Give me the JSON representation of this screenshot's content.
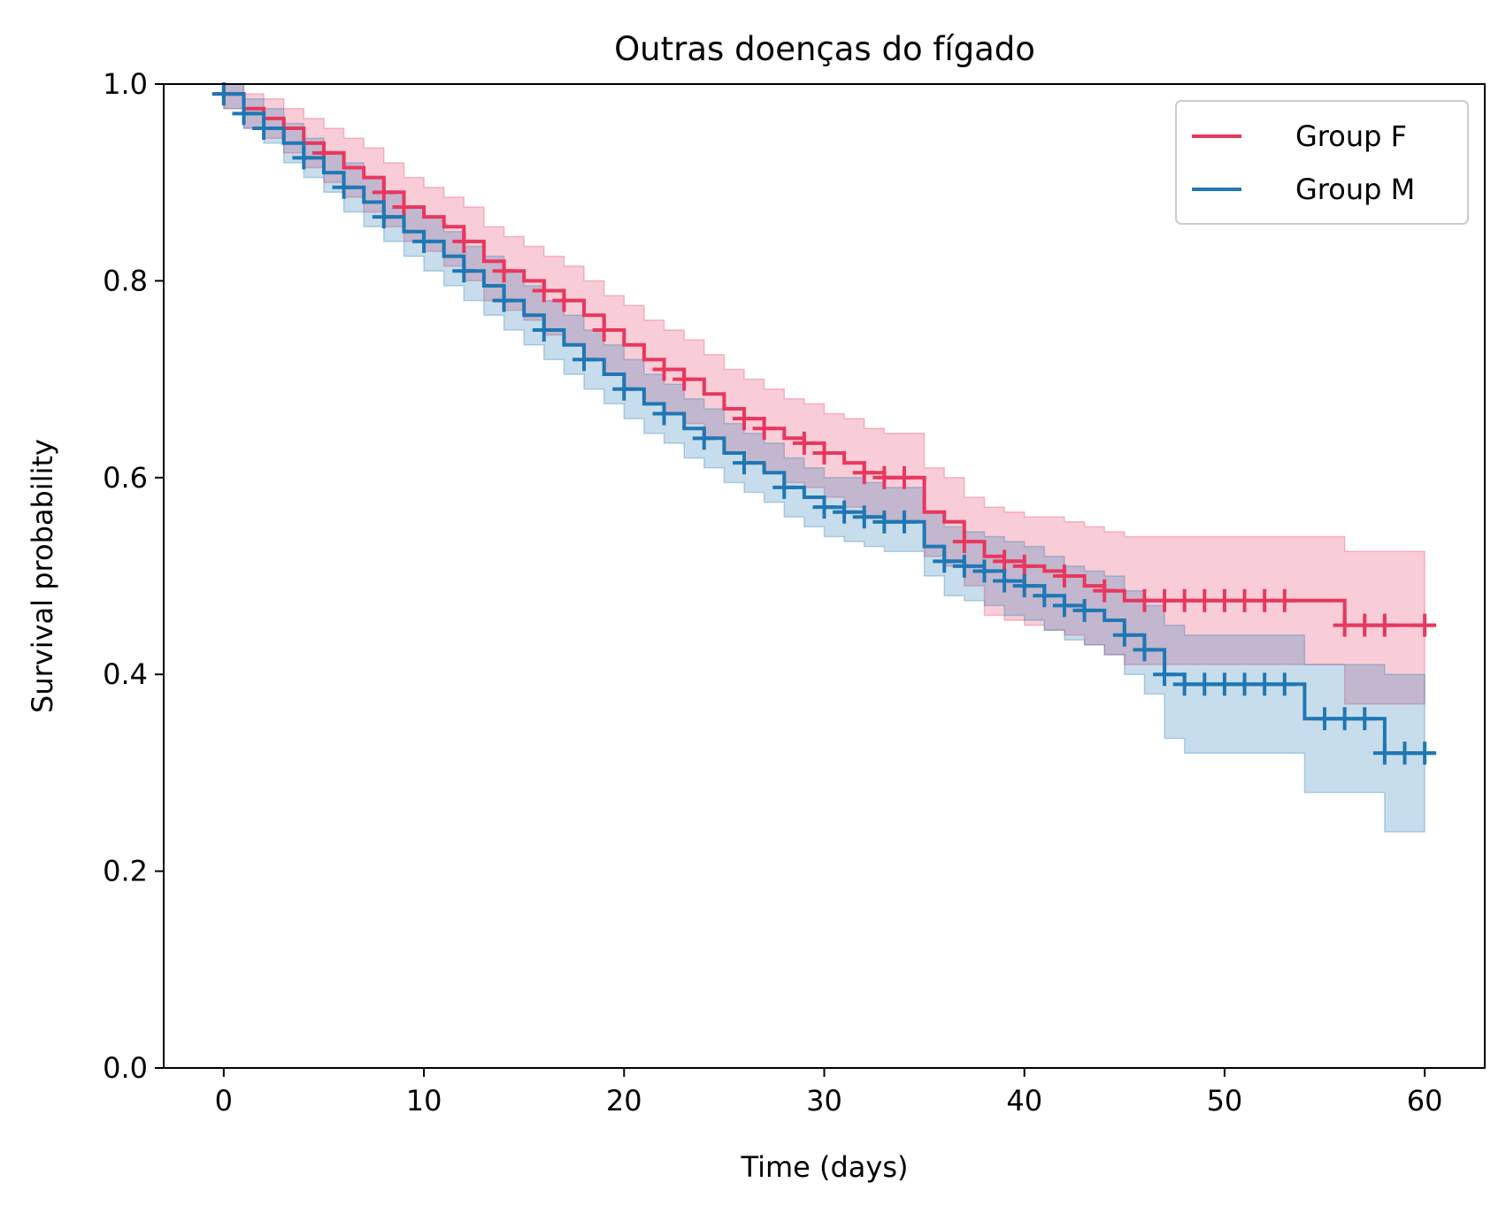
{
  "chart_data": {
    "type": "line",
    "subtype": "kaplan-meier",
    "title": "Outras doenças do fígado",
    "xlabel": "Time (days)",
    "ylabel": "Survival probability",
    "xlim": [
      -3,
      63
    ],
    "ylim": [
      0,
      1
    ],
    "xticks": [
      0,
      10,
      20,
      30,
      40,
      50,
      60
    ],
    "yticks": [
      0.0,
      0.2,
      0.4,
      0.6,
      0.8,
      1.0
    ],
    "xtick_labels": [
      "0",
      "10",
      "20",
      "30",
      "40",
      "50",
      "60"
    ],
    "ytick_labels": [
      "0.0",
      "0.2",
      "0.4",
      "0.6",
      "0.8",
      "1.0"
    ],
    "grid": false,
    "legend_position": "top-right",
    "legend": [
      "Group F",
      "Group M"
    ],
    "series": [
      {
        "name": "Group F",
        "color": "#e8375e",
        "steps": [
          [
            0,
            0.99
          ],
          [
            1,
            0.975
          ],
          [
            2,
            0.965
          ],
          [
            3,
            0.955
          ],
          [
            4,
            0.94
          ],
          [
            5,
            0.93
          ],
          [
            6,
            0.915
          ],
          [
            7,
            0.905
          ],
          [
            8,
            0.89
          ],
          [
            9,
            0.875
          ],
          [
            10,
            0.865
          ],
          [
            11,
            0.855
          ],
          [
            12,
            0.84
          ],
          [
            13,
            0.82
          ],
          [
            14,
            0.81
          ],
          [
            15,
            0.8
          ],
          [
            16,
            0.79
          ],
          [
            17,
            0.78
          ],
          [
            18,
            0.765
          ],
          [
            19,
            0.75
          ],
          [
            20,
            0.735
          ],
          [
            21,
            0.72
          ],
          [
            22,
            0.71
          ],
          [
            23,
            0.7
          ],
          [
            24,
            0.685
          ],
          [
            25,
            0.67
          ],
          [
            26,
            0.66
          ],
          [
            27,
            0.65
          ],
          [
            28,
            0.64
          ],
          [
            29,
            0.635
          ],
          [
            30,
            0.625
          ],
          [
            31,
            0.615
          ],
          [
            32,
            0.605
          ],
          [
            33,
            0.6
          ],
          [
            35,
            0.565
          ],
          [
            36,
            0.555
          ],
          [
            37,
            0.535
          ],
          [
            38,
            0.52
          ],
          [
            39,
            0.515
          ],
          [
            40,
            0.51
          ],
          [
            41,
            0.505
          ],
          [
            42,
            0.5
          ],
          [
            43,
            0.49
          ],
          [
            44,
            0.485
          ],
          [
            45,
            0.475
          ],
          [
            56,
            0.45
          ]
        ],
        "end": 60.5,
        "ci_upper": [
          [
            0,
            1.0
          ],
          [
            1,
            0.99
          ],
          [
            2,
            0.985
          ],
          [
            3,
            0.975
          ],
          [
            4,
            0.965
          ],
          [
            5,
            0.955
          ],
          [
            6,
            0.945
          ],
          [
            7,
            0.935
          ],
          [
            8,
            0.92
          ],
          [
            9,
            0.905
          ],
          [
            10,
            0.895
          ],
          [
            11,
            0.885
          ],
          [
            12,
            0.875
          ],
          [
            13,
            0.855
          ],
          [
            14,
            0.845
          ],
          [
            15,
            0.835
          ],
          [
            16,
            0.825
          ],
          [
            17,
            0.815
          ],
          [
            18,
            0.8
          ],
          [
            19,
            0.785
          ],
          [
            20,
            0.775
          ],
          [
            21,
            0.76
          ],
          [
            22,
            0.75
          ],
          [
            23,
            0.74
          ],
          [
            24,
            0.725
          ],
          [
            25,
            0.71
          ],
          [
            26,
            0.7
          ],
          [
            27,
            0.69
          ],
          [
            28,
            0.68
          ],
          [
            29,
            0.675
          ],
          [
            30,
            0.665
          ],
          [
            31,
            0.66
          ],
          [
            32,
            0.65
          ],
          [
            33,
            0.645
          ],
          [
            35,
            0.61
          ],
          [
            36,
            0.6
          ],
          [
            37,
            0.58
          ],
          [
            38,
            0.57
          ],
          [
            39,
            0.565
          ],
          [
            40,
            0.56
          ],
          [
            41,
            0.56
          ],
          [
            42,
            0.555
          ],
          [
            43,
            0.55
          ],
          [
            44,
            0.545
          ],
          [
            45,
            0.54
          ],
          [
            56,
            0.525
          ]
        ],
        "ci_lower": [
          [
            0,
            0.975
          ],
          [
            1,
            0.955
          ],
          [
            2,
            0.945
          ],
          [
            3,
            0.93
          ],
          [
            4,
            0.915
          ],
          [
            5,
            0.9
          ],
          [
            6,
            0.885
          ],
          [
            7,
            0.87
          ],
          [
            8,
            0.855
          ],
          [
            9,
            0.84
          ],
          [
            10,
            0.83
          ],
          [
            11,
            0.815
          ],
          [
            12,
            0.8
          ],
          [
            13,
            0.78
          ],
          [
            14,
            0.77
          ],
          [
            15,
            0.76
          ],
          [
            16,
            0.745
          ],
          [
            17,
            0.735
          ],
          [
            18,
            0.72
          ],
          [
            19,
            0.705
          ],
          [
            20,
            0.69
          ],
          [
            21,
            0.675
          ],
          [
            22,
            0.665
          ],
          [
            23,
            0.655
          ],
          [
            24,
            0.64
          ],
          [
            25,
            0.625
          ],
          [
            26,
            0.615
          ],
          [
            27,
            0.605
          ],
          [
            28,
            0.595
          ],
          [
            29,
            0.59
          ],
          [
            30,
            0.58
          ],
          [
            31,
            0.57
          ],
          [
            32,
            0.56
          ],
          [
            33,
            0.555
          ],
          [
            35,
            0.52
          ],
          [
            36,
            0.51
          ],
          [
            37,
            0.49
          ],
          [
            38,
            0.46
          ],
          [
            39,
            0.455
          ],
          [
            40,
            0.45
          ],
          [
            41,
            0.445
          ],
          [
            42,
            0.44
          ],
          [
            43,
            0.43
          ],
          [
            44,
            0.42
          ],
          [
            45,
            0.41
          ],
          [
            56,
            0.37
          ]
        ],
        "censor_times": [
          0,
          3,
          5,
          8,
          9,
          12,
          14,
          16,
          17,
          19,
          22,
          23,
          26,
          27,
          29,
          30,
          32,
          33,
          34,
          37,
          39,
          40,
          42,
          44,
          46,
          47,
          48,
          49,
          50,
          51,
          52,
          53,
          56,
          57,
          58,
          60
        ]
      },
      {
        "name": "Group M",
        "color": "#1f77b4",
        "steps": [
          [
            0,
            0.99
          ],
          [
            1,
            0.97
          ],
          [
            2,
            0.955
          ],
          [
            3,
            0.94
          ],
          [
            4,
            0.925
          ],
          [
            5,
            0.91
          ],
          [
            6,
            0.895
          ],
          [
            7,
            0.88
          ],
          [
            8,
            0.865
          ],
          [
            9,
            0.85
          ],
          [
            10,
            0.84
          ],
          [
            11,
            0.825
          ],
          [
            12,
            0.81
          ],
          [
            13,
            0.795
          ],
          [
            14,
            0.78
          ],
          [
            15,
            0.765
          ],
          [
            16,
            0.75
          ],
          [
            17,
            0.735
          ],
          [
            18,
            0.72
          ],
          [
            19,
            0.705
          ],
          [
            20,
            0.69
          ],
          [
            21,
            0.675
          ],
          [
            22,
            0.665
          ],
          [
            23,
            0.65
          ],
          [
            24,
            0.64
          ],
          [
            25,
            0.625
          ],
          [
            26,
            0.615
          ],
          [
            27,
            0.605
          ],
          [
            28,
            0.59
          ],
          [
            29,
            0.58
          ],
          [
            30,
            0.57
          ],
          [
            31,
            0.565
          ],
          [
            32,
            0.56
          ],
          [
            33,
            0.555
          ],
          [
            35,
            0.53
          ],
          [
            36,
            0.515
          ],
          [
            37,
            0.51
          ],
          [
            38,
            0.505
          ],
          [
            39,
            0.495
          ],
          [
            40,
            0.49
          ],
          [
            41,
            0.48
          ],
          [
            42,
            0.47
          ],
          [
            43,
            0.465
          ],
          [
            44,
            0.455
          ],
          [
            45,
            0.44
          ],
          [
            46,
            0.425
          ],
          [
            47,
            0.4
          ],
          [
            48,
            0.39
          ],
          [
            54,
            0.355
          ],
          [
            58,
            0.32
          ]
        ],
        "end": 60.5,
        "ci_upper": [
          [
            0,
            1.0
          ],
          [
            1,
            0.985
          ],
          [
            2,
            0.975
          ],
          [
            3,
            0.96
          ],
          [
            4,
            0.945
          ],
          [
            5,
            0.93
          ],
          [
            6,
            0.92
          ],
          [
            7,
            0.905
          ],
          [
            8,
            0.89
          ],
          [
            9,
            0.875
          ],
          [
            10,
            0.865
          ],
          [
            11,
            0.85
          ],
          [
            12,
            0.835
          ],
          [
            13,
            0.825
          ],
          [
            14,
            0.81
          ],
          [
            15,
            0.795
          ],
          [
            16,
            0.78
          ],
          [
            17,
            0.765
          ],
          [
            18,
            0.75
          ],
          [
            19,
            0.735
          ],
          [
            20,
            0.72
          ],
          [
            21,
            0.705
          ],
          [
            22,
            0.695
          ],
          [
            23,
            0.68
          ],
          [
            24,
            0.67
          ],
          [
            25,
            0.655
          ],
          [
            26,
            0.645
          ],
          [
            27,
            0.635
          ],
          [
            28,
            0.62
          ],
          [
            29,
            0.61
          ],
          [
            30,
            0.6
          ],
          [
            31,
            0.6
          ],
          [
            32,
            0.595
          ],
          [
            33,
            0.59
          ],
          [
            35,
            0.565
          ],
          [
            36,
            0.55
          ],
          [
            37,
            0.545
          ],
          [
            38,
            0.54
          ],
          [
            39,
            0.535
          ],
          [
            40,
            0.53
          ],
          [
            41,
            0.52
          ],
          [
            42,
            0.51
          ],
          [
            43,
            0.505
          ],
          [
            44,
            0.5
          ],
          [
            45,
            0.485
          ],
          [
            46,
            0.47
          ],
          [
            47,
            0.45
          ],
          [
            48,
            0.44
          ],
          [
            54,
            0.41
          ],
          [
            58,
            0.4
          ]
        ],
        "ci_lower": [
          [
            0,
            0.975
          ],
          [
            1,
            0.955
          ],
          [
            2,
            0.94
          ],
          [
            3,
            0.92
          ],
          [
            4,
            0.905
          ],
          [
            5,
            0.89
          ],
          [
            6,
            0.87
          ],
          [
            7,
            0.855
          ],
          [
            8,
            0.84
          ],
          [
            9,
            0.825
          ],
          [
            10,
            0.81
          ],
          [
            11,
            0.795
          ],
          [
            12,
            0.78
          ],
          [
            13,
            0.765
          ],
          [
            14,
            0.75
          ],
          [
            15,
            0.735
          ],
          [
            16,
            0.72
          ],
          [
            17,
            0.705
          ],
          [
            18,
            0.69
          ],
          [
            19,
            0.675
          ],
          [
            20,
            0.66
          ],
          [
            21,
            0.645
          ],
          [
            22,
            0.635
          ],
          [
            23,
            0.62
          ],
          [
            24,
            0.61
          ],
          [
            25,
            0.595
          ],
          [
            26,
            0.585
          ],
          [
            27,
            0.575
          ],
          [
            28,
            0.56
          ],
          [
            29,
            0.55
          ],
          [
            30,
            0.54
          ],
          [
            31,
            0.535
          ],
          [
            32,
            0.53
          ],
          [
            33,
            0.525
          ],
          [
            35,
            0.5
          ],
          [
            36,
            0.48
          ],
          [
            37,
            0.475
          ],
          [
            38,
            0.47
          ],
          [
            39,
            0.46
          ],
          [
            40,
            0.455
          ],
          [
            41,
            0.445
          ],
          [
            42,
            0.435
          ],
          [
            43,
            0.43
          ],
          [
            44,
            0.42
          ],
          [
            45,
            0.4
          ],
          [
            46,
            0.38
          ],
          [
            47,
            0.335
          ],
          [
            48,
            0.32
          ],
          [
            54,
            0.28
          ],
          [
            58,
            0.24
          ]
        ],
        "censor_times": [
          0,
          1,
          2,
          4,
          6,
          8,
          10,
          12,
          14,
          16,
          18,
          20,
          22,
          24,
          26,
          28,
          30,
          31,
          32,
          33,
          34,
          36,
          37,
          38,
          39,
          40,
          41,
          42,
          43,
          45,
          46,
          47,
          48,
          49,
          50,
          51,
          52,
          53,
          55,
          56,
          57,
          58,
          59,
          60
        ]
      }
    ]
  }
}
